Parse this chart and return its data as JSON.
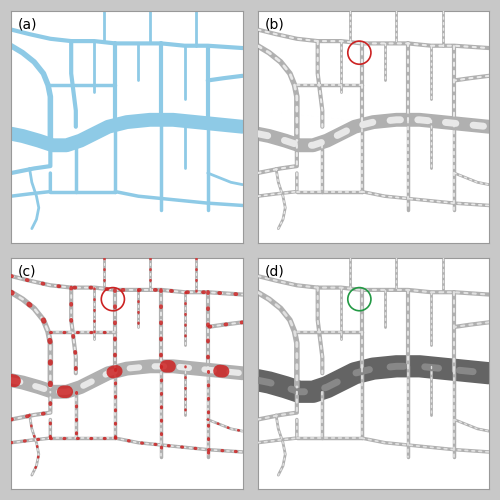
{
  "fig_size": [
    5.0,
    5.0
  ],
  "dpi": 100,
  "panel_labels": [
    "(a)",
    "(b)",
    "(c)",
    "(d)"
  ],
  "label_fontsize": 10,
  "panel_bg": "#ffffff",
  "river_color_a": "#8ecae6",
  "superpixel_fill": "#b0b0b0",
  "superpixel_edge": "#787878",
  "superpixel_edge_light": "#d0d0d0",
  "red_dot_color": "#cc2222",
  "dark_river_fill": "#646464",
  "dark_river_edge": "#484848",
  "circle_red": "#cc2222",
  "circle_green": "#229944",
  "outer_bg": "#c8c8c8",
  "border_color": "#999999",
  "label_fontsize_small": 9,
  "river_alpha": 1.0
}
